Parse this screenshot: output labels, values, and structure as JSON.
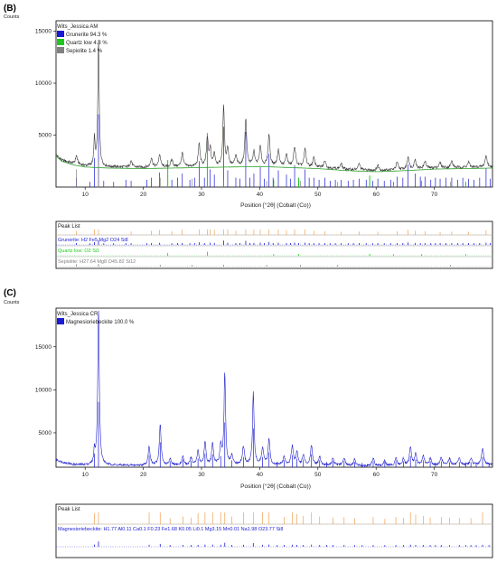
{
  "colors": {
    "grunerite": "#1a1ad6",
    "quartz": "#1ec81e",
    "sepiolite": "#808080",
    "observed": "#2222cc",
    "calculated": "#3b3b3b",
    "background": "#2aa02a",
    "peaklist": "#f0a050",
    "magnesioriebeckite": "#1a1ad6",
    "axis": "#000000"
  },
  "panels": [
    {
      "letter": "(B)",
      "counts_label": "Counts",
      "sample_name": "Wits_Jessica AM",
      "legend": [
        {
          "swatch": "grunerite",
          "text": "Grunerite 94.3 %"
        },
        {
          "swatch": "quartz",
          "text": "Quartz low 4.3 %"
        },
        {
          "swatch": "sepiolite",
          "text": "Sepiolite 1.4 %"
        }
      ],
      "x_axis_label": "Position [°2θ] (Cobalt (Co))",
      "peak_list": {
        "header": "Peak List",
        "rows": [
          {
            "text": "Grunerite: H2 Fe5 Mg2 O24 Si8",
            "color": "grunerite"
          },
          {
            "text": "Quartz low: O2 Si1",
            "color": "quartz"
          },
          {
            "text": "Sepiolite: H27.64 Mg8 O45.82 Si12",
            "color": "sepiolite"
          }
        ]
      }
    },
    {
      "letter": "(C)",
      "counts_label": "Counts",
      "sample_name": "Wits_Jessica CR",
      "legend": [
        {
          "swatch": "magnesioriebeckite",
          "text": "Magnesioriebeckite 100.0 %"
        }
      ],
      "x_axis_label": "Position [°2θ] (Cobalt (Co))",
      "peak_list": {
        "header": "Peak List",
        "rows": [
          {
            "text": "Magnesioriebeckite: H1.77 Al0.11 Ca0.1 F0.23 Fe1.68 K0.05 Li0.1 Mg3.15 Mn0.01 Na1.98 O23.77 Si8",
            "color": "magnesioriebeckite"
          }
        ]
      }
    }
  ],
  "chart_data": [
    {
      "type": "line",
      "title": "Wits_Jessica AM",
      "xlabel": "Position [°2θ] (Cobalt (Co))",
      "ylabel": "Counts",
      "xlim": [
        5,
        80
      ],
      "ylim": [
        0,
        16000
      ],
      "x_ticks": [
        10,
        20,
        30,
        40,
        50,
        60,
        70
      ],
      "y_ticks": [
        5000,
        10000,
        15000
      ],
      "grid": false,
      "legend_position": "top-left",
      "baseline": [
        [
          5,
          3100
        ],
        [
          6,
          2600
        ],
        [
          8,
          2250
        ],
        [
          10,
          2050
        ],
        [
          14,
          1950
        ],
        [
          20,
          1900
        ],
        [
          30,
          2000
        ],
        [
          40,
          2100
        ],
        [
          50,
          1900
        ],
        [
          55,
          1700
        ],
        [
          60,
          1600
        ],
        [
          65,
          1700
        ],
        [
          70,
          1850
        ],
        [
          75,
          1900
        ],
        [
          80,
          1950
        ]
      ],
      "peaks": [
        {
          "x": 8.5,
          "y": 800,
          "w": 0.2
        },
        {
          "x": 11.6,
          "y": 2600,
          "w": 0.12
        },
        {
          "x": 12.3,
          "y": 12200,
          "w": 0.14
        },
        {
          "x": 17.9,
          "y": 600,
          "w": 0.2
        },
        {
          "x": 21.4,
          "y": 900,
          "w": 0.2
        },
        {
          "x": 22.8,
          "y": 1200,
          "w": 0.2
        },
        {
          "x": 24.9,
          "y": 700,
          "w": 0.2
        },
        {
          "x": 26.7,
          "y": 1300,
          "w": 0.2
        },
        {
          "x": 29.6,
          "y": 2200,
          "w": 0.18
        },
        {
          "x": 31.0,
          "y": 2700,
          "w": 0.18
        },
        {
          "x": 31.5,
          "y": 1600,
          "w": 0.15
        },
        {
          "x": 32.2,
          "y": 1200,
          "w": 0.18
        },
        {
          "x": 33.8,
          "y": 5700,
          "w": 0.16
        },
        {
          "x": 34.5,
          "y": 1600,
          "w": 0.18
        },
        {
          "x": 35.9,
          "y": 900,
          "w": 0.2
        },
        {
          "x": 37.6,
          "y": 4500,
          "w": 0.18
        },
        {
          "x": 39.0,
          "y": 1300,
          "w": 0.18
        },
        {
          "x": 40.1,
          "y": 1800,
          "w": 0.18
        },
        {
          "x": 41.6,
          "y": 3000,
          "w": 0.18
        },
        {
          "x": 43.2,
          "y": 1500,
          "w": 0.2
        },
        {
          "x": 44.6,
          "y": 1100,
          "w": 0.2
        },
        {
          "x": 46.0,
          "y": 1900,
          "w": 0.2
        },
        {
          "x": 47.8,
          "y": 1700,
          "w": 0.2
        },
        {
          "x": 49.3,
          "y": 900,
          "w": 0.2
        },
        {
          "x": 51.2,
          "y": 700,
          "w": 0.2
        },
        {
          "x": 54.0,
          "y": 500,
          "w": 0.2
        },
        {
          "x": 57.1,
          "y": 600,
          "w": 0.2
        },
        {
          "x": 60.3,
          "y": 500,
          "w": 0.2
        },
        {
          "x": 63.6,
          "y": 700,
          "w": 0.2
        },
        {
          "x": 65.5,
          "y": 1200,
          "w": 0.2
        },
        {
          "x": 66.7,
          "y": 900,
          "w": 0.2
        },
        {
          "x": 68.4,
          "y": 700,
          "w": 0.2
        },
        {
          "x": 71.0,
          "y": 500,
          "w": 0.2
        },
        {
          "x": 73.0,
          "y": 600,
          "w": 0.2
        },
        {
          "x": 75.9,
          "y": 500,
          "w": 0.2
        },
        {
          "x": 78.9,
          "y": 1100,
          "w": 0.2
        }
      ],
      "sticks": {
        "grunerite": [
          [
            8.5,
            900
          ],
          [
            10.8,
            500
          ],
          [
            11.6,
            2800
          ],
          [
            12.3,
            7000
          ],
          [
            13.2,
            600
          ],
          [
            14.9,
            500
          ],
          [
            17.0,
            700
          ],
          [
            17.9,
            600
          ],
          [
            20.6,
            700
          ],
          [
            21.4,
            900
          ],
          [
            22.8,
            1400
          ],
          [
            24.9,
            700
          ],
          [
            25.9,
            900
          ],
          [
            26.7,
            1300
          ],
          [
            28.0,
            700
          ],
          [
            28.8,
            900
          ],
          [
            29.6,
            2500
          ],
          [
            30.5,
            900
          ],
          [
            31.5,
            1700
          ],
          [
            32.2,
            1200
          ],
          [
            33.8,
            5800
          ],
          [
            34.5,
            1600
          ],
          [
            35.9,
            900
          ],
          [
            36.6,
            800
          ],
          [
            37.6,
            5300
          ],
          [
            38.3,
            900
          ],
          [
            39.0,
            1300
          ],
          [
            40.1,
            1900
          ],
          [
            40.8,
            800
          ],
          [
            41.6,
            3200
          ],
          [
            42.3,
            900
          ],
          [
            43.2,
            1600
          ],
          [
            44.6,
            1200
          ],
          [
            45.3,
            800
          ],
          [
            46.0,
            2100
          ],
          [
            46.7,
            800
          ],
          [
            47.8,
            1700
          ],
          [
            48.5,
            900
          ],
          [
            49.3,
            900
          ],
          [
            50.2,
            700
          ],
          [
            51.2,
            900
          ],
          [
            52.1,
            600
          ],
          [
            53.0,
            700
          ],
          [
            54.0,
            700
          ],
          [
            55.2,
            600
          ],
          [
            56.1,
            700
          ],
          [
            57.1,
            800
          ],
          [
            58.3,
            700
          ],
          [
            59.4,
            600
          ],
          [
            60.3,
            800
          ],
          [
            61.4,
            600
          ],
          [
            62.5,
            700
          ],
          [
            63.6,
            1000
          ],
          [
            64.6,
            900
          ],
          [
            65.5,
            2200
          ],
          [
            66.7,
            1300
          ],
          [
            67.6,
            1000
          ],
          [
            68.4,
            1000
          ],
          [
            69.4,
            700
          ],
          [
            70.2,
            900
          ],
          [
            71.0,
            800
          ],
          [
            72.0,
            900
          ],
          [
            73.0,
            900
          ],
          [
            74.0,
            700
          ],
          [
            74.9,
            900
          ],
          [
            75.9,
            800
          ],
          [
            76.8,
            700
          ],
          [
            77.8,
            900
          ],
          [
            78.9,
            1800
          ],
          [
            79.6,
            800
          ]
        ],
        "quartz": [
          [
            24.2,
            2600
          ],
          [
            31.0,
            5200
          ],
          [
            42.4,
            700
          ],
          [
            46.7,
            900
          ],
          [
            58.9,
            1100
          ],
          [
            63.0,
            500
          ],
          [
            67.8,
            600
          ],
          [
            75.4,
            500
          ]
        ],
        "sepiolite": [
          [
            8.5,
            1700
          ],
          [
            12.3,
            2500
          ],
          [
            22.9,
            900
          ],
          [
            28.4,
            800
          ],
          [
            33.8,
            700
          ],
          [
            41.2,
            600
          ],
          [
            47.0,
            600
          ],
          [
            53.4,
            500
          ],
          [
            72.8,
            500
          ]
        ]
      }
    },
    {
      "type": "line",
      "title": "Wits_Jessica CR",
      "xlabel": "Position [°2θ] (Cobalt (Co))",
      "ylabel": "Counts",
      "xlim": [
        5,
        80
      ],
      "ylim": [
        1000,
        19500
      ],
      "x_ticks": [
        10,
        20,
        30,
        40,
        50,
        60,
        70
      ],
      "y_ticks": [
        5000,
        10000,
        15000
      ],
      "grid": false,
      "legend_position": "top-left",
      "baseline": [
        [
          5,
          1900
        ],
        [
          6,
          1600
        ],
        [
          8,
          1300
        ],
        [
          10,
          1250
        ],
        [
          20,
          1200
        ],
        [
          30,
          1250
        ],
        [
          40,
          1300
        ],
        [
          50,
          1250
        ],
        [
          60,
          1150
        ],
        [
          70,
          1250
        ],
        [
          80,
          1350
        ]
      ],
      "peaks": [
        {
          "x": 11.6,
          "y": 1600,
          "w": 0.12
        },
        {
          "x": 12.3,
          "y": 18300,
          "w": 0.16
        },
        {
          "x": 21.0,
          "y": 2200,
          "w": 0.2
        },
        {
          "x": 22.9,
          "y": 4800,
          "w": 0.18
        },
        {
          "x": 24.6,
          "y": 700,
          "w": 0.2
        },
        {
          "x": 26.8,
          "y": 1000,
          "w": 0.2
        },
        {
          "x": 28.2,
          "y": 800,
          "w": 0.2
        },
        {
          "x": 29.4,
          "y": 1600,
          "w": 0.2
        },
        {
          "x": 30.6,
          "y": 2600,
          "w": 0.18
        },
        {
          "x": 31.9,
          "y": 2400,
          "w": 0.18
        },
        {
          "x": 33.3,
          "y": 2100,
          "w": 0.18
        },
        {
          "x": 34.0,
          "y": 10700,
          "w": 0.16
        },
        {
          "x": 35.2,
          "y": 1000,
          "w": 0.2
        },
        {
          "x": 37.2,
          "y": 2100,
          "w": 0.2
        },
        {
          "x": 38.9,
          "y": 8300,
          "w": 0.16
        },
        {
          "x": 40.5,
          "y": 1900,
          "w": 0.2
        },
        {
          "x": 41.6,
          "y": 2900,
          "w": 0.18
        },
        {
          "x": 44.2,
          "y": 900,
          "w": 0.2
        },
        {
          "x": 45.6,
          "y": 2200,
          "w": 0.2
        },
        {
          "x": 46.4,
          "y": 1400,
          "w": 0.2
        },
        {
          "x": 47.5,
          "y": 1100,
          "w": 0.2
        },
        {
          "x": 48.9,
          "y": 2300,
          "w": 0.2
        },
        {
          "x": 50.3,
          "y": 1000,
          "w": 0.2
        },
        {
          "x": 52.6,
          "y": 800,
          "w": 0.2
        },
        {
          "x": 54.5,
          "y": 900,
          "w": 0.2
        },
        {
          "x": 56.3,
          "y": 700,
          "w": 0.2
        },
        {
          "x": 59.5,
          "y": 900,
          "w": 0.2
        },
        {
          "x": 61.5,
          "y": 600,
          "w": 0.2
        },
        {
          "x": 63.4,
          "y": 900,
          "w": 0.2
        },
        {
          "x": 64.7,
          "y": 800,
          "w": 0.2
        },
        {
          "x": 65.9,
          "y": 2100,
          "w": 0.2
        },
        {
          "x": 66.8,
          "y": 1300,
          "w": 0.2
        },
        {
          "x": 68.1,
          "y": 1100,
          "w": 0.2
        },
        {
          "x": 69.3,
          "y": 800,
          "w": 0.2
        },
        {
          "x": 71.2,
          "y": 900,
          "w": 0.2
        },
        {
          "x": 72.6,
          "y": 800,
          "w": 0.2
        },
        {
          "x": 74.3,
          "y": 700,
          "w": 0.2
        },
        {
          "x": 76.3,
          "y": 700,
          "w": 0.2
        },
        {
          "x": 78.3,
          "y": 1900,
          "w": 0.2
        }
      ],
      "sticks": {
        "magnesioriebeckite": [
          [
            11.6,
            1600
          ],
          [
            12.3,
            7600
          ],
          [
            21.0,
            1400
          ],
          [
            22.9,
            2900
          ],
          [
            24.6,
            700
          ],
          [
            26.8,
            900
          ],
          [
            28.2,
            700
          ],
          [
            29.4,
            1000
          ],
          [
            30.6,
            1600
          ],
          [
            31.9,
            1500
          ],
          [
            33.3,
            1300
          ],
          [
            34.0,
            5200
          ],
          [
            35.2,
            800
          ],
          [
            37.2,
            1200
          ],
          [
            38.9,
            4500
          ],
          [
            40.5,
            1200
          ],
          [
            41.6,
            1700
          ],
          [
            43.0,
            600
          ],
          [
            44.2,
            800
          ],
          [
            45.6,
            1400
          ],
          [
            46.4,
            1000
          ],
          [
            47.5,
            900
          ],
          [
            48.9,
            1500
          ],
          [
            50.3,
            800
          ],
          [
            51.5,
            600
          ],
          [
            52.6,
            700
          ],
          [
            54.5,
            700
          ],
          [
            56.3,
            600
          ],
          [
            57.6,
            500
          ],
          [
            59.5,
            700
          ],
          [
            61.5,
            600
          ],
          [
            63.4,
            700
          ],
          [
            64.7,
            700
          ],
          [
            65.9,
            1300
          ],
          [
            66.8,
            900
          ],
          [
            68.1,
            800
          ],
          [
            69.3,
            700
          ],
          [
            70.2,
            500
          ],
          [
            71.2,
            700
          ],
          [
            72.6,
            600
          ],
          [
            74.3,
            600
          ],
          [
            75.4,
            500
          ],
          [
            76.3,
            600
          ],
          [
            77.2,
            500
          ],
          [
            78.3,
            1200
          ],
          [
            79.4,
            500
          ]
        ]
      }
    }
  ]
}
